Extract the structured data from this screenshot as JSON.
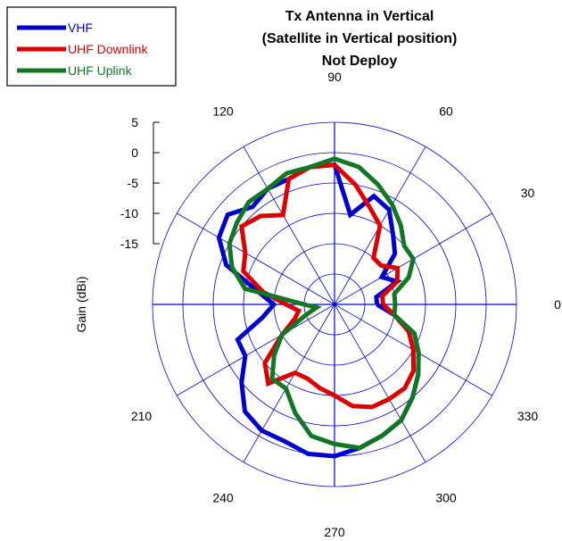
{
  "chart_data": {
    "type": "polar-line",
    "title": [
      "Tx Antenna in Vertical",
      "(Satellite in Vertical position)",
      "Not Deploy"
    ],
    "ylabel": "Gain (dBi)",
    "r_ticks": [
      5,
      0,
      -5,
      -10,
      -15
    ],
    "rlim": [
      -25,
      5
    ],
    "angle_ticks": [
      0,
      30,
      60,
      90,
      120,
      150,
      180,
      210,
      240,
      270,
      300,
      330
    ],
    "angle_tick_labels_shown": [
      "0",
      "30",
      "60",
      "90",
      "120",
      "210",
      "240",
      "270",
      "300",
      "330"
    ],
    "grid": true,
    "legend_position": "top-left",
    "series": [
      {
        "name": "VHF",
        "color": "#0000cc",
        "angles": [
          0,
          10,
          20,
          30,
          40,
          50,
          60,
          70,
          80,
          90,
          100,
          110,
          120,
          130,
          140,
          150,
          160,
          170,
          180,
          190,
          200,
          210,
          220,
          230,
          240,
          250,
          260,
          270,
          280,
          290,
          300,
          310,
          320,
          330,
          340,
          350
        ],
        "values": [
          -18,
          -18,
          -14,
          -16,
          -12,
          -10,
          -7,
          -6,
          -10,
          -2,
          -2,
          -3,
          -3,
          -4,
          -2,
          -3,
          -6,
          -12,
          -15,
          -13,
          -8,
          -8,
          -5,
          -2,
          -1,
          -1,
          0,
          0,
          -1,
          -2,
          -3,
          -5,
          -7,
          -9,
          -11,
          -15
        ]
      },
      {
        "name": "UHF Downlink",
        "color": "#dd0000",
        "angles": [
          0,
          10,
          20,
          30,
          40,
          50,
          60,
          70,
          80,
          90,
          100,
          110,
          120,
          130,
          140,
          150,
          160,
          170,
          180,
          190,
          200,
          210,
          220,
          230,
          240,
          250,
          260,
          270,
          280,
          290,
          300,
          310,
          320,
          330,
          340,
          350
        ],
        "values": [
          -17,
          -17,
          -14,
          -13,
          -15,
          -15,
          -10,
          -8,
          -5,
          -2,
          -2,
          -3,
          -8,
          -6,
          -5,
          -8,
          -9,
          -13,
          -17,
          -19,
          -18,
          -15,
          -10,
          -8,
          -12,
          -12,
          -11,
          -10,
          -8,
          -7,
          -7,
          -7,
          -8,
          -10,
          -12,
          -15
        ]
      },
      {
        "name": "UHF Uplink",
        "color": "#117722",
        "angles": [
          0,
          10,
          20,
          30,
          40,
          50,
          60,
          70,
          80,
          90,
          100,
          110,
          120,
          130,
          140,
          150,
          160,
          170,
          180,
          190,
          200,
          210,
          220,
          230,
          240,
          250,
          260,
          270,
          280,
          290,
          300,
          310,
          320,
          330,
          340,
          350
        ],
        "values": [
          -15,
          -15,
          -12,
          -10,
          -10,
          -8,
          -6,
          -4,
          -2,
          -1,
          -2,
          -2,
          -3,
          -3,
          -4,
          -5,
          -7,
          -10,
          -20,
          -22,
          -20,
          -15,
          -12,
          -9,
          -9,
          -6,
          -3,
          -2,
          -1,
          -2,
          -3,
          -5,
          -7,
          -9,
          -11,
          -15
        ]
      }
    ]
  }
}
